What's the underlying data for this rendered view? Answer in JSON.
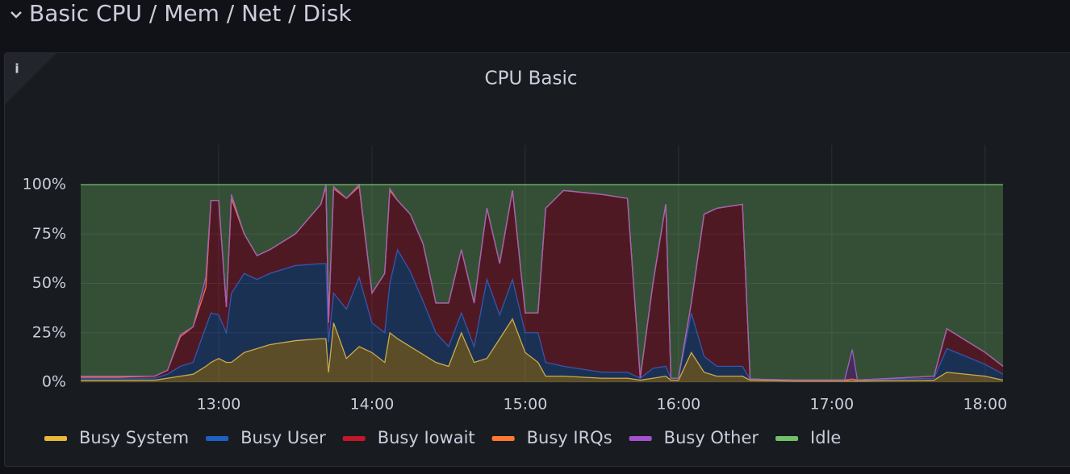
{
  "header": {
    "title": "Basic CPU / Mem / Net / Disk"
  },
  "chart_data": {
    "type": "stacked-area",
    "title": "CPU Basic",
    "x": [
      "12:06",
      "12:20",
      "12:35",
      "12:40",
      "12:45",
      "12:50",
      "12:55",
      "12:57",
      "13:00",
      "13:03",
      "13:05",
      "13:10",
      "13:15",
      "13:20",
      "13:30",
      "13:40",
      "13:42",
      "13:43",
      "13:45",
      "13:50",
      "13:55",
      "14:00",
      "14:05",
      "14:07",
      "14:10",
      "14:15",
      "14:20",
      "14:25",
      "14:30",
      "14:35",
      "14:40",
      "14:45",
      "14:50",
      "14:55",
      "15:00",
      "15:05",
      "15:08",
      "15:15",
      "15:30",
      "15:40",
      "15:45",
      "15:50",
      "15:55",
      "15:57",
      "16:00",
      "16:05",
      "16:10",
      "16:15",
      "16:25",
      "16:28",
      "16:45",
      "17:05",
      "17:08",
      "17:10",
      "17:40",
      "17:45",
      "18:00",
      "18:07"
    ],
    "series": [
      {
        "name": "Busy System",
        "color": "#EAB839",
        "values": [
          1,
          1,
          1,
          2,
          3,
          4,
          8,
          10,
          12,
          10,
          10,
          15,
          17,
          19,
          21,
          22,
          22,
          5,
          30,
          12,
          18,
          15,
          10,
          25,
          22,
          18,
          14,
          10,
          8,
          25,
          10,
          12,
          22,
          32,
          15,
          10,
          3,
          3,
          2,
          2,
          1,
          2,
          3,
          1,
          1,
          15,
          5,
          3,
          3,
          1,
          0.5,
          0.5,
          0.5,
          0.5,
          1,
          5,
          3,
          1
        ]
      },
      {
        "name": "Busy User",
        "color": "#1F60C4",
        "values": [
          1,
          1,
          1,
          2,
          5,
          6,
          20,
          25,
          22,
          15,
          35,
          40,
          35,
          36,
          38,
          38,
          38,
          15,
          15,
          25,
          35,
          15,
          15,
          25,
          45,
          38,
          27,
          15,
          10,
          10,
          8,
          40,
          12,
          20,
          10,
          15,
          7,
          5,
          3,
          3,
          1,
          5,
          5,
          1,
          1,
          20,
          8,
          5,
          5,
          0.5,
          0.5,
          0.5,
          1,
          0.5,
          1,
          12,
          6,
          3
        ]
      },
      {
        "name": "Busy Iowait",
        "color": "#C4162A",
        "values": [
          0.5,
          0.5,
          1,
          2,
          15,
          18,
          20,
          57,
          58,
          13,
          48,
          20,
          12,
          12,
          16,
          30,
          39,
          10,
          53,
          56,
          46,
          15,
          30,
          47,
          25,
          29,
          29,
          15,
          22,
          32,
          22,
          36,
          26,
          45,
          10,
          10,
          78,
          89,
          90,
          88,
          0,
          43,
          82,
          0,
          0,
          5,
          72,
          80,
          82,
          0,
          0,
          0,
          0,
          0,
          1,
          10,
          6,
          4
        ]
      },
      {
        "name": "Busy IRQs",
        "color": "#FF7830",
        "values": [
          0,
          0,
          0,
          0,
          0,
          0,
          0,
          0,
          0,
          0,
          0,
          0,
          0,
          0,
          0,
          0,
          0,
          0,
          0,
          0,
          0,
          0,
          0,
          0,
          0,
          0,
          0,
          0,
          0,
          0,
          0,
          0,
          0,
          0,
          0,
          0,
          0,
          0,
          0,
          0,
          0,
          0,
          0,
          0,
          0,
          0,
          0,
          0,
          0,
          0,
          0,
          0,
          0,
          0,
          0,
          0,
          0,
          0
        ]
      },
      {
        "name": "Busy Other",
        "color": "#A352CC",
        "values": [
          0.5,
          0.5,
          0,
          0,
          1,
          0,
          5,
          0,
          0,
          0,
          2,
          0,
          0,
          0,
          0,
          0,
          1,
          0,
          1,
          0,
          1,
          0,
          0,
          1,
          0,
          0,
          0,
          0,
          0,
          0,
          0,
          0,
          0,
          0,
          0,
          0,
          0,
          0,
          0,
          0,
          0,
          0,
          0,
          0,
          0,
          0,
          0,
          0,
          0,
          0,
          0,
          0,
          15,
          0,
          0,
          0,
          0,
          0
        ]
      },
      {
        "name": "Idle",
        "color": "#73BF69",
        "values": [
          97,
          97,
          97,
          94,
          76,
          72,
          47,
          8,
          8,
          62,
          5,
          25,
          36,
          33,
          25,
          10,
          0,
          70,
          1,
          7,
          0,
          55,
          45,
          2,
          8,
          15,
          30,
          60,
          60,
          33,
          60,
          12,
          40,
          3,
          65,
          65,
          12,
          3,
          5,
          7,
          98,
          50,
          10,
          98,
          98,
          60,
          15,
          12,
          10,
          98.5,
          99,
          99,
          83.5,
          99,
          97,
          73,
          85,
          92
        ]
      }
    ],
    "xlim": [
      "12:06",
      "18:07"
    ],
    "xticks": [
      "13:00",
      "14:00",
      "15:00",
      "16:00",
      "17:00",
      "18:00"
    ],
    "ylim": [
      0,
      120
    ],
    "yticks": [
      {
        "value": 0,
        "label": "0%"
      },
      {
        "value": 25,
        "label": "25%"
      },
      {
        "value": 50,
        "label": "50%"
      },
      {
        "value": 75,
        "label": "75%"
      },
      {
        "value": 100,
        "label": "100%"
      }
    ],
    "grid": true,
    "legend": "bottom"
  }
}
